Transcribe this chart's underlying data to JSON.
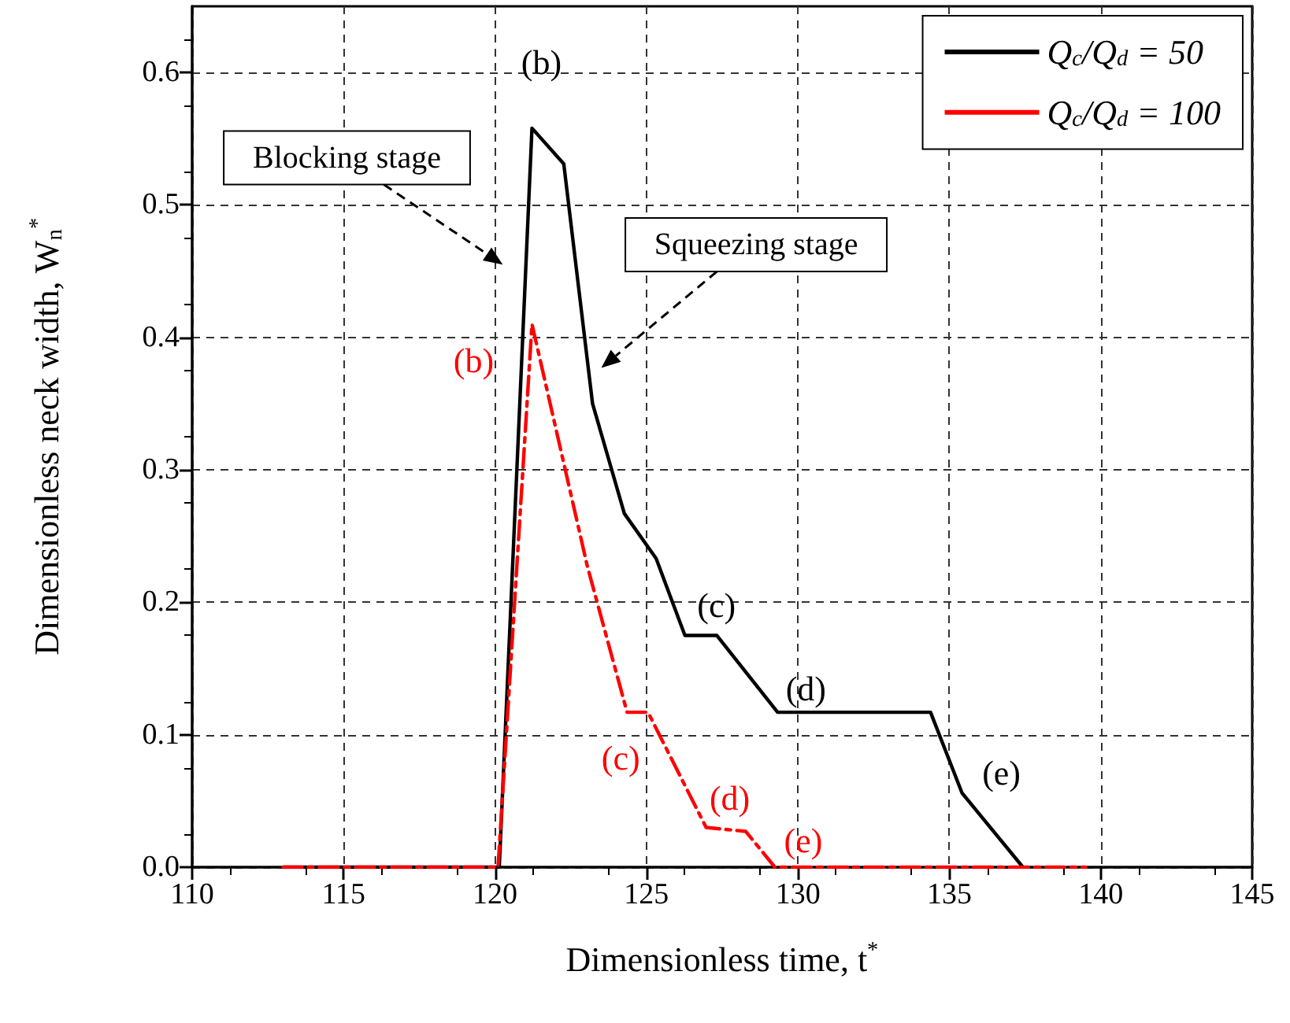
{
  "chart_data": {
    "type": "line",
    "xlabel": "Dimensionless time, t$^{*}$",
    "ylabel": "Dimensionless neck width, W$_{n}$$^{*}$",
    "series": [
      {
        "name": "Q$_{c}$/Q$_{d}$ = 50",
        "color": "#000000",
        "line_style": "solid",
        "x": [
          113,
          120.14,
          121.22,
          122.27,
          123.22,
          124.27,
          125.32,
          126.27,
          127.32,
          129.33,
          134.38,
          135.42,
          137.43
        ],
        "values": [
          0,
          0,
          0.558,
          0.531,
          0.35,
          0.267,
          0.233,
          0.175,
          0.175,
          0.117,
          0.117,
          0.056,
          0
        ]
      },
      {
        "name": "Q$_{c}$/Q$_{d}$ = 100",
        "color": "#ff0000",
        "line_style": "dashed",
        "x": [
          113,
          120.1,
          121.22,
          123.05,
          124.36,
          125.05,
          126.97,
          128.28,
          129.24,
          139.5
        ],
        "values": [
          0,
          0,
          0.41,
          0.227,
          0.117,
          0.117,
          0.03,
          0.027,
          0,
          0
        ]
      }
    ],
    "xlim": [
      110,
      145
    ],
    "xticks": [
      110,
      115,
      120,
      125,
      130,
      135,
      140,
      145
    ],
    "ylim": [
      0,
      0.65
    ],
    "yticks": [
      {
        "value": 0,
        "label": "0.0"
      },
      0.1,
      0.2,
      0.3,
      0.4,
      0.5,
      0.6
    ],
    "grid": true,
    "legend": "top right",
    "marker": "none",
    "annotations": [
      {
        "text": "(b)",
        "x": 121.22,
        "y": 0.558
      },
      {
        "text": "(b)",
        "x": 121.22,
        "y": 0.41
      },
      {
        "text": "(c)",
        "x": 126.27,
        "y": 0.175
      },
      {
        "text": "(d)",
        "x": 129.33,
        "y": 0.117
      },
      {
        "text": "(e)",
        "x": 135.42,
        "y": 0.056
      },
      {
        "text": "(c)",
        "x": 124.36,
        "y": 0.117
      },
      {
        "text": "(d)",
        "x": 126.97,
        "y": 0.03
      },
      {
        "text": "(e)",
        "x": 129.24,
        "y": 0
      },
      "Blocking stage",
      "Squeezing stage"
    ]
  }
}
